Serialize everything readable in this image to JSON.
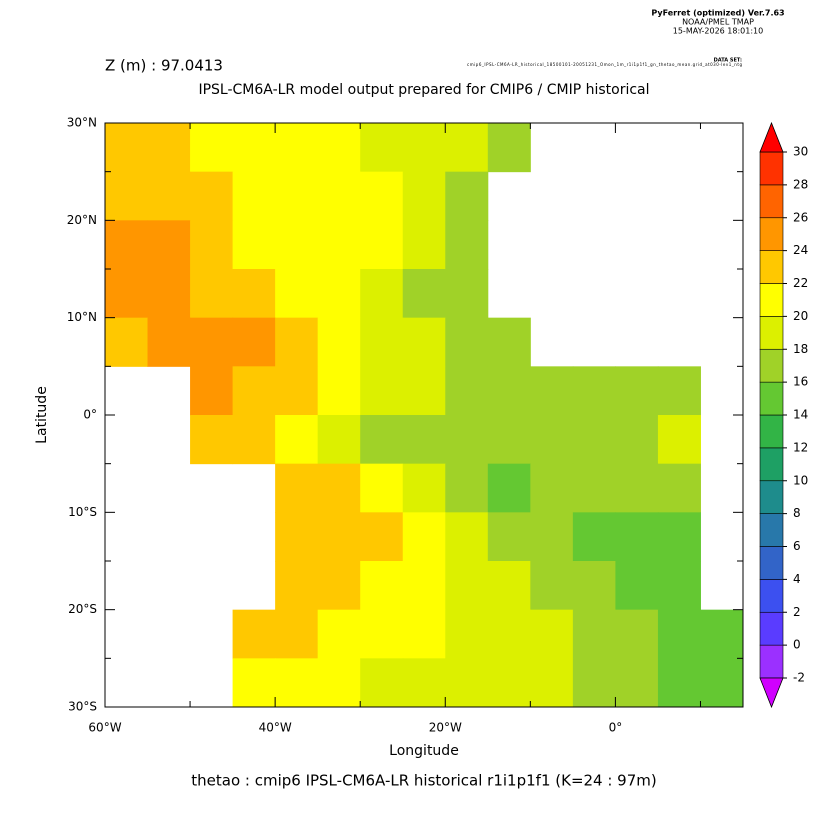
{
  "chart_data": {
    "type": "heatmap",
    "header": [
      "PyFerret (optimized) Ver.7.63",
      "NOAA/PMEL TMAP",
      "15-MAY-2026 18:01:10"
    ],
    "dataset_label": "DATA SET:",
    "dataset": "cmip6_IPSL-CM6A-LR_historical_18500101-20051231_Omon_1m_r1i1p1f1_gn_thetao_mean.grid_at030-lev1_ntg",
    "title": "Z (m) : 97.0413",
    "subtitle": "IPSL-CM6A-LR model output prepared for CMIP6 / CMIP historical",
    "xlabel": "Longitude",
    "ylabel": "Latitude",
    "footer": "thetao : cmip6 IPSL-CM6A-LR historical r1i1p1f1   (K=24 : 97m)",
    "xlim": [
      -60,
      15
    ],
    "ylim": [
      -30,
      30
    ],
    "xticks": [
      {
        "value": -60,
        "label": "60°W"
      },
      {
        "value": -40,
        "label": "40°W"
      },
      {
        "value": -20,
        "label": "20°W"
      },
      {
        "value": 0,
        "label": "0°"
      }
    ],
    "xticks_minor": [
      -50,
      -30,
      -10,
      10
    ],
    "yticks": [
      {
        "value": -30,
        "label": "30°S"
      },
      {
        "value": -20,
        "label": "20°S"
      },
      {
        "value": -10,
        "label": "10°S"
      },
      {
        "value": 0,
        "label": "0°"
      },
      {
        "value": 10,
        "label": "10°N"
      },
      {
        "value": 20,
        "label": "20°N"
      },
      {
        "value": 30,
        "label": "30°N"
      }
    ],
    "yticks_minor": [
      -25,
      -15,
      -5,
      5,
      15,
      25
    ],
    "lons": [
      -57.5,
      -52.5,
      -47.5,
      -42.5,
      -37.5,
      -32.5,
      -27.5,
      -22.5,
      -17.5,
      -12.5,
      -7.5,
      -2.5,
      2.5,
      7.5,
      12.5
    ],
    "lats": [
      27.5,
      22.5,
      17.5,
      12.5,
      7.5,
      2.5,
      -2.5,
      -7.5,
      -12.5,
      -17.5,
      -22.5,
      -27.5
    ],
    "values": [
      [
        22,
        22,
        21,
        21,
        20,
        20,
        19,
        19,
        18,
        17,
        null,
        null,
        null,
        null,
        null
      ],
      [
        23,
        23,
        22,
        21,
        20,
        21,
        20,
        19,
        17,
        null,
        null,
        null,
        null,
        null,
        null
      ],
      [
        24,
        24,
        23,
        21,
        20,
        21,
        20,
        18,
        16,
        null,
        null,
        null,
        null,
        null,
        null
      ],
      [
        24,
        24,
        23,
        22,
        20,
        20,
        19,
        17,
        16,
        null,
        null,
        null,
        null,
        null,
        null
      ],
      [
        23,
        24,
        25,
        24,
        22,
        20,
        19,
        18,
        17,
        16,
        null,
        null,
        null,
        null,
        null
      ],
      [
        null,
        null,
        25,
        23,
        22,
        20,
        19,
        18,
        17,
        17,
        16,
        17,
        17,
        17,
        null
      ],
      [
        null,
        null,
        22,
        22,
        20,
        18,
        17,
        16,
        16,
        16,
        16,
        17,
        17,
        18,
        null
      ],
      [
        null,
        null,
        null,
        null,
        22,
        22,
        20,
        18,
        16,
        15,
        16,
        16,
        17,
        17,
        null
      ],
      [
        null,
        null,
        null,
        null,
        22,
        23,
        22,
        21,
        18,
        17,
        16,
        15,
        15,
        15,
        null
      ],
      [
        null,
        null,
        null,
        null,
        22,
        22,
        21,
        20,
        19,
        18,
        17,
        16,
        15,
        14,
        null
      ],
      [
        null,
        null,
        null,
        22,
        22,
        21,
        21,
        20,
        19,
        18,
        18,
        17,
        16,
        14,
        14
      ],
      [
        null,
        null,
        null,
        20,
        20,
        20,
        19,
        19,
        19,
        18,
        18,
        17,
        16,
        15,
        14
      ]
    ],
    "colorbar": {
      "levels": [
        -2,
        0,
        2,
        4,
        6,
        8,
        10,
        12,
        14,
        16,
        18,
        20,
        22,
        24,
        26,
        28,
        30
      ],
      "colors": [
        "#9b30ff",
        "#5a3cff",
        "#3c50f0",
        "#3264c8",
        "#2878aa",
        "#1e8c8c",
        "#1ea064",
        "#32b446",
        "#64c832",
        "#a0d228",
        "#dcf000",
        "#ffff00",
        "#ffc800",
        "#ff9600",
        "#ff6400",
        "#ff3200"
      ],
      "under_color": "#d000ff",
      "over_color": "#ff0000"
    }
  }
}
